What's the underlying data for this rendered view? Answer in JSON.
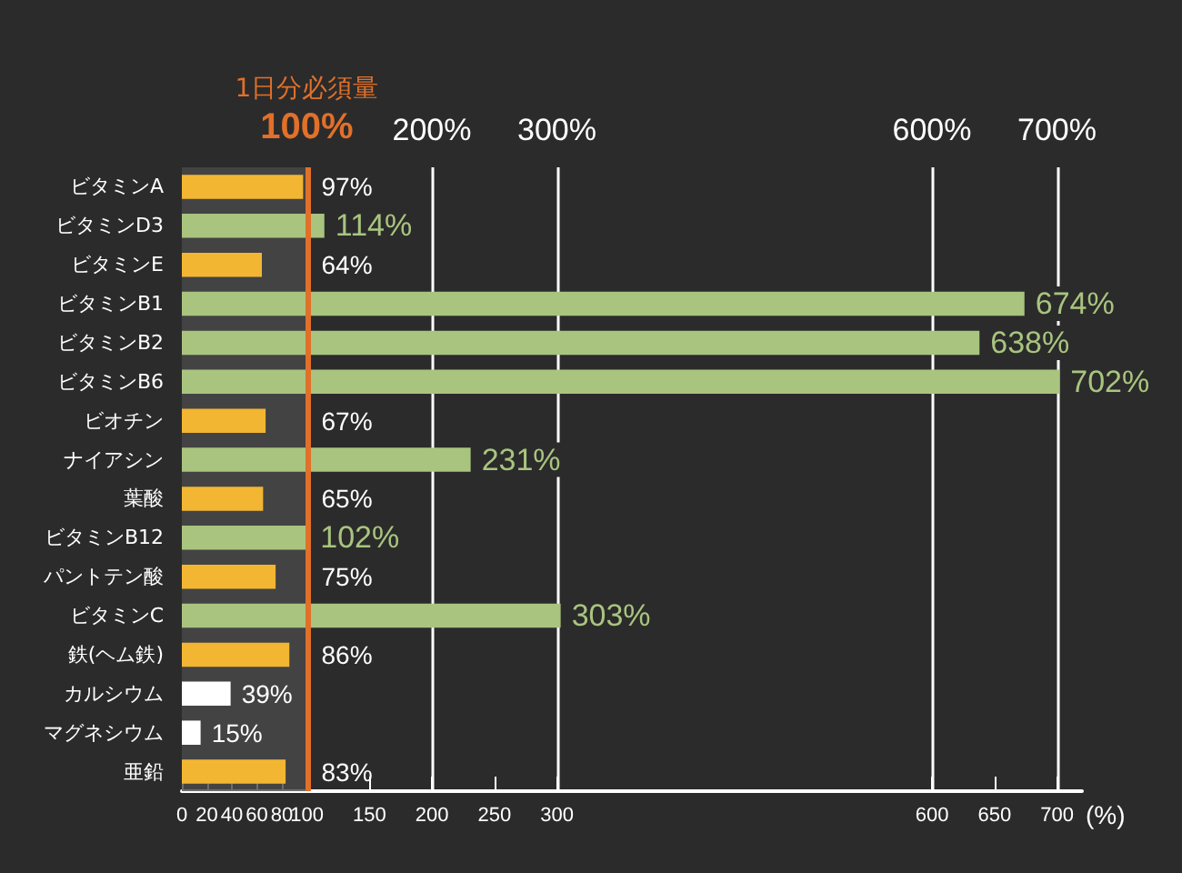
{
  "chart_data": {
    "type": "bar",
    "orientation": "horizontal",
    "xlabel": "(%)",
    "categories": [
      "ビタミンA",
      "ビタミンD3",
      "ビタミンE",
      "ビタミンB1",
      "ビタミンB2",
      "ビタミンB6",
      "ビオチン",
      "ナイアシン",
      "葉酸",
      "ビタミンB12",
      "パントテン酸",
      "ビタミンC",
      "鉄(ヘム鉄)",
      "カルシウム",
      "マグネシウム",
      "亜鉛"
    ],
    "values": [
      97,
      114,
      64,
      674,
      638,
      702,
      67,
      231,
      65,
      102,
      75,
      303,
      86,
      39,
      15,
      83
    ],
    "colors": [
      "#f2b632",
      "#a9c47f",
      "#f2b632",
      "#a9c47f",
      "#a9c47f",
      "#a9c47f",
      "#f2b632",
      "#a9c47f",
      "#f2b632",
      "#a9c47f",
      "#f2b632",
      "#a9c47f",
      "#f2b632",
      "#ffffff",
      "#ffffff",
      "#f2b632"
    ],
    "value_labels": [
      "97%",
      "114%",
      "64%",
      "674%",
      "638%",
      "702%",
      "67%",
      "231%",
      "65%",
      "102%",
      "75%",
      "303%",
      "86%",
      "39%",
      "15%",
      "83%"
    ],
    "xlim": [
      0,
      720
    ],
    "xticks": [
      0,
      20,
      40,
      60,
      80,
      100,
      150,
      200,
      250,
      300,
      600,
      650,
      700
    ],
    "x2lim": [
      0,
      720
    ],
    "x2ticks": [
      {
        "value": 100,
        "label": "100%"
      },
      {
        "value": 200,
        "label": "200%"
      },
      {
        "value": 300,
        "label": "300%"
      },
      {
        "value": 600,
        "label": "600%"
      },
      {
        "value": 700,
        "label": "700%"
      }
    ],
    "ref_lines": [
      {
        "axis": "x",
        "value": 100,
        "label": "1日分必須量",
        "color": "#e0702a"
      }
    ],
    "bands": [
      {
        "axis": "x",
        "from": 0,
        "to": 100,
        "color": "#4a4a4a"
      }
    ],
    "grid": "x"
  }
}
